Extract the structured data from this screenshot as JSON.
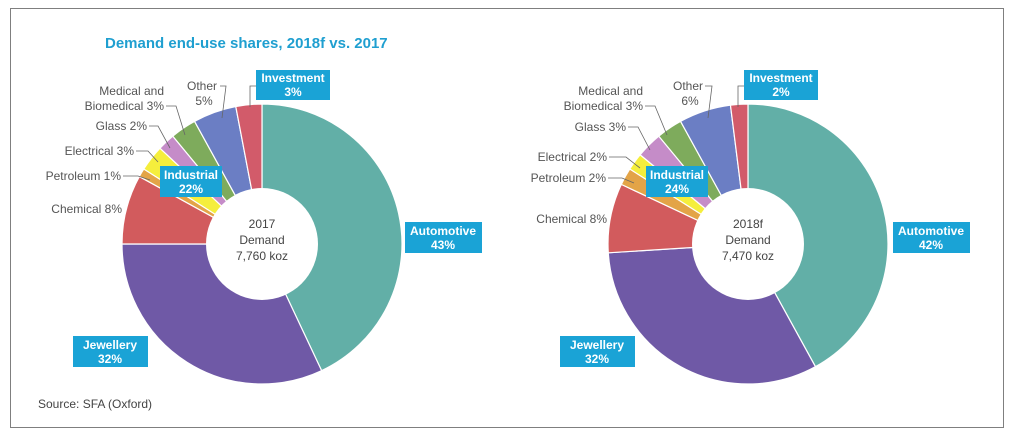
{
  "title": "Demand end-use shares, 2018f vs. 2017",
  "source": "Source: SFA (Oxford)",
  "colors": {
    "Automotive": "#62afa7",
    "Jewellery": "#6f59a6",
    "Chemical": "#d25b5d",
    "Petroleum": "#e3a447",
    "Electrical": "#f5ee3c",
    "Glass": "#c58cc8",
    "Medical and Biomedical": "#7eab5c",
    "Other": "#6b7ec4",
    "Investment": "#d25b6a",
    "label_box": "#1aa3d6"
  },
  "chart_data": [
    {
      "type": "pie",
      "center_text": [
        "2017",
        "Demand",
        "7,760 koz"
      ],
      "slices": [
        {
          "name": "Automotive",
          "value": 43
        },
        {
          "name": "Jewellery",
          "value": 32
        },
        {
          "name": "Chemical",
          "value": 8
        },
        {
          "name": "Petroleum",
          "value": 1
        },
        {
          "name": "Electrical",
          "value": 3
        },
        {
          "name": "Glass",
          "value": 2
        },
        {
          "name": "Medical and Biomedical",
          "value": 3
        },
        {
          "name": "Other",
          "value": 5
        },
        {
          "name": "Investment",
          "value": 3
        }
      ],
      "labels": {
        "automotive": [
          "Automotive",
          "43%"
        ],
        "jewellery": [
          "Jewellery",
          "32%"
        ],
        "industrial": [
          "Industrial",
          "22%"
        ],
        "investment": [
          "Investment",
          "3%"
        ],
        "chemical": "Chemical 8%",
        "petroleum": "Petroleum 1%",
        "electrical": "Electrical 3%",
        "glass": "Glass 2%",
        "medical": [
          "Medical and",
          "Biomedical 3%"
        ],
        "other": [
          "Other",
          "5%"
        ]
      }
    },
    {
      "type": "pie",
      "center_text": [
        "2018f",
        "Demand",
        "7,470 koz"
      ],
      "slices": [
        {
          "name": "Automotive",
          "value": 42
        },
        {
          "name": "Jewellery",
          "value": 32
        },
        {
          "name": "Chemical",
          "value": 8
        },
        {
          "name": "Petroleum",
          "value": 2
        },
        {
          "name": "Electrical",
          "value": 2
        },
        {
          "name": "Glass",
          "value": 3
        },
        {
          "name": "Medical and Biomedical",
          "value": 3
        },
        {
          "name": "Other",
          "value": 6
        },
        {
          "name": "Investment",
          "value": 2
        }
      ],
      "labels": {
        "automotive": [
          "Automotive",
          "42%"
        ],
        "jewellery": [
          "Jewellery",
          "32%"
        ],
        "industrial": [
          "Industrial",
          "24%"
        ],
        "investment": [
          "Investment",
          "2%"
        ],
        "chemical": "Chemical 8%",
        "petroleum": "Petroleum 2%",
        "electrical": "Electrical 2%",
        "glass": "Glass 3%",
        "medical": [
          "Medical and",
          "Biomedical 3%"
        ],
        "other": [
          "Other",
          "6%"
        ]
      }
    }
  ]
}
